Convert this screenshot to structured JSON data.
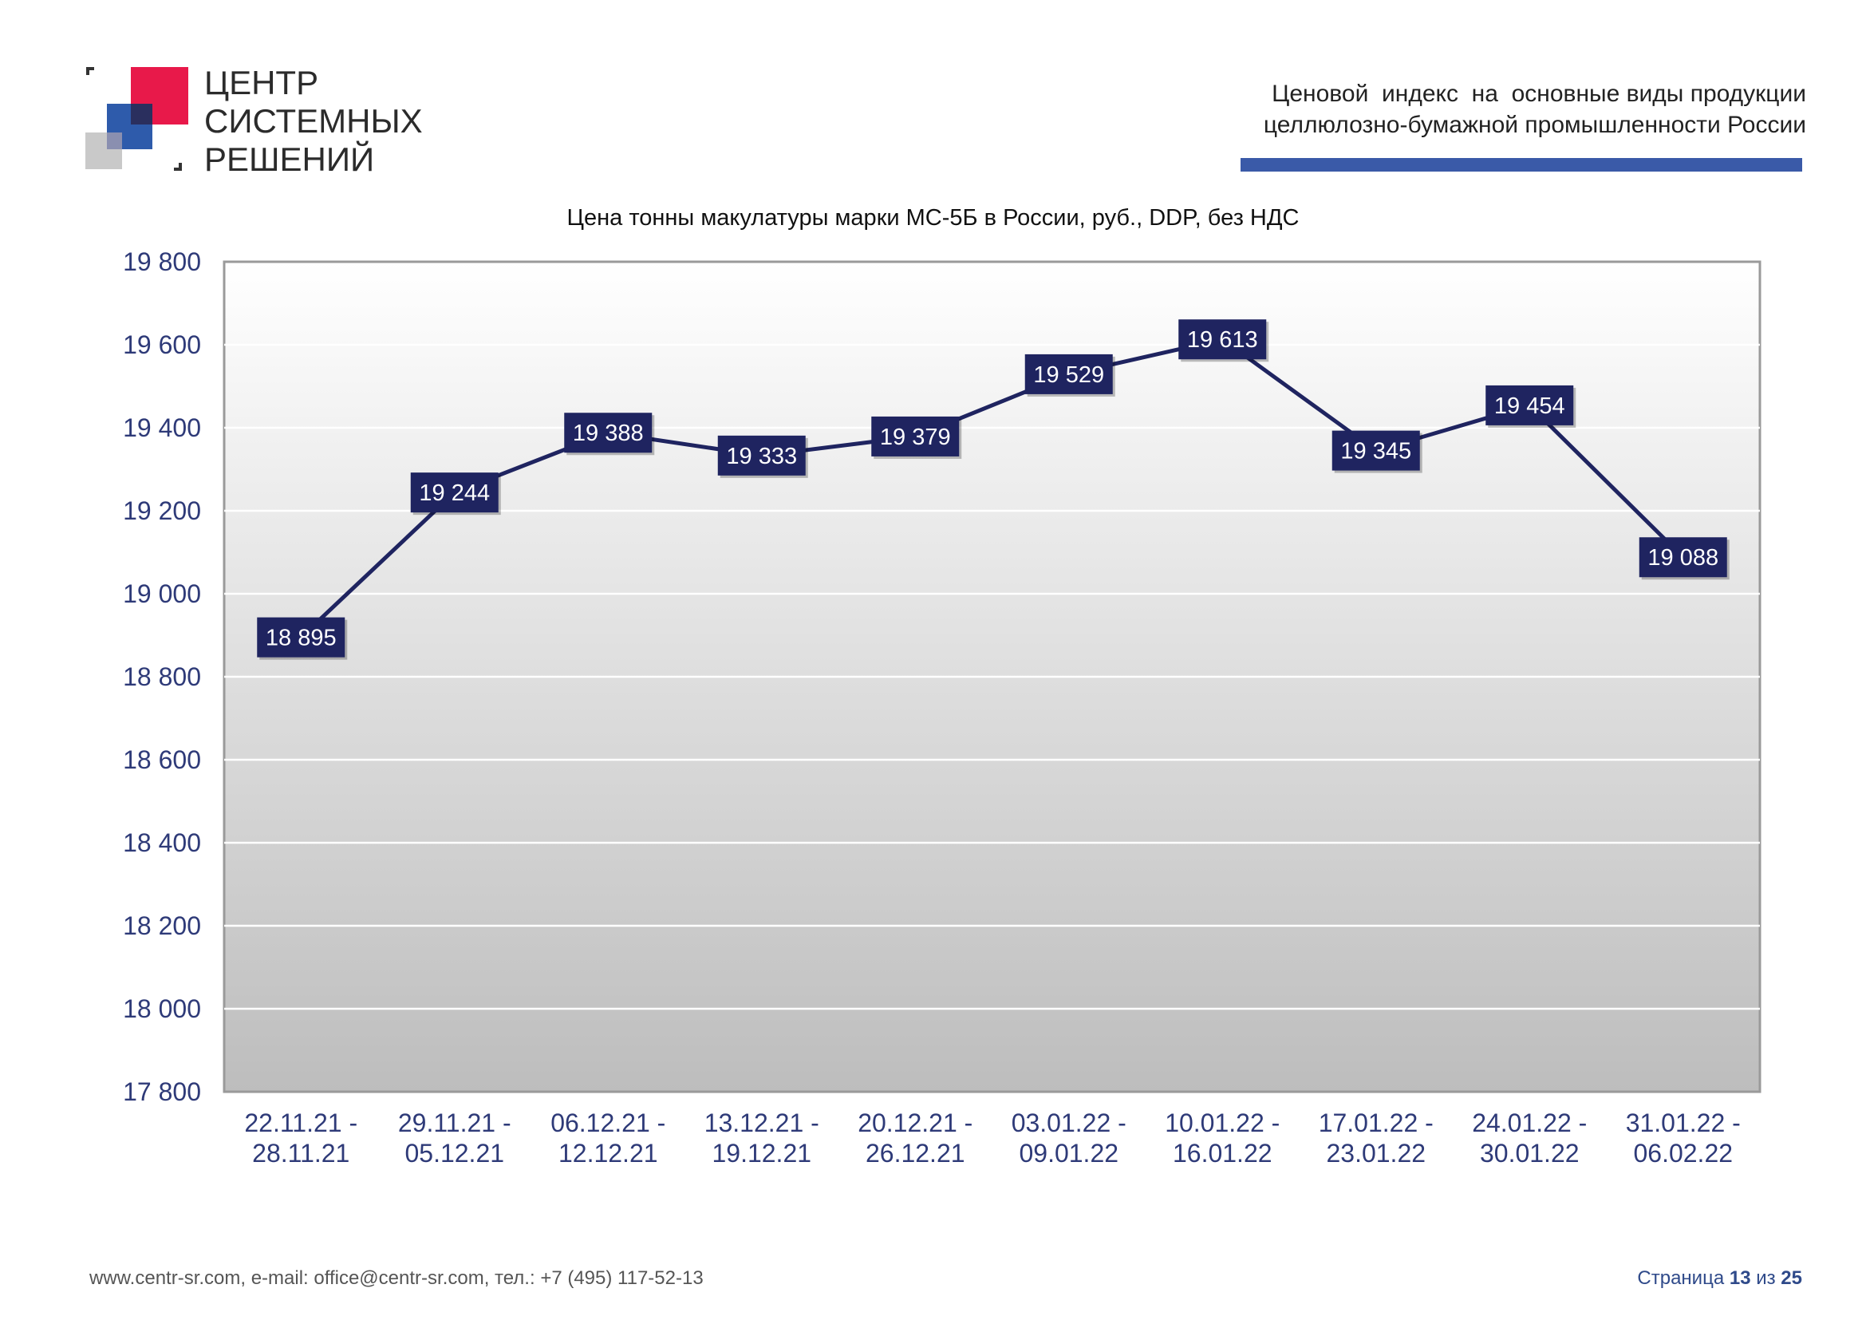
{
  "logo": {
    "lines": [
      "ЦЕНТР",
      "СИСТЕМНЫХ",
      "РЕШЕНИЙ"
    ],
    "colors": {
      "red": "#e8194a",
      "blue": "#2e5bab",
      "gray": "#c9c9c9",
      "dark": "#333333"
    }
  },
  "header": {
    "line1": "Ценовой  индекс  на  основные виды продукции",
    "line2": "целлюлозно-бумажной промышленности России",
    "accent_color": "#3a5aa8"
  },
  "chart_data": {
    "type": "line",
    "title": "Цена тонны макулатуры марки МС-5Б в России, руб., DDP, без НДС",
    "categories": [
      [
        "22.11.21 -",
        "28.11.21"
      ],
      [
        "29.11.21 -",
        "05.12.21"
      ],
      [
        "06.12.21 -",
        "12.12.21"
      ],
      [
        "13.12.21 -",
        "19.12.21"
      ],
      [
        "20.12.21 -",
        "26.12.21"
      ],
      [
        "03.01.22 -",
        "09.01.22"
      ],
      [
        "10.01.22 -",
        "16.01.22"
      ],
      [
        "17.01.22 -",
        "23.01.22"
      ],
      [
        "24.01.22 -",
        "30.01.22"
      ],
      [
        "31.01.22 -",
        "06.02.22"
      ]
    ],
    "values": [
      18895,
      19244,
      19388,
      19333,
      19379,
      19529,
      19613,
      19345,
      19454,
      19088
    ],
    "value_labels": [
      "18 895",
      "19 244",
      "19 388",
      "19 333",
      "19 379",
      "19 529",
      "19 613",
      "19 345",
      "19 454",
      "19 088"
    ],
    "ylim": [
      17800,
      19800
    ],
    "yticks": [
      17800,
      18000,
      18200,
      18400,
      18600,
      18800,
      19000,
      19200,
      19400,
      19600,
      19800
    ],
    "ytick_labels": [
      "17 800",
      "18 000",
      "18 200",
      "18 400",
      "18 600",
      "18 800",
      "19 000",
      "19 200",
      "19 400",
      "19 600",
      "19 800"
    ],
    "grid": true,
    "line_color": "#1f2460",
    "label_bg": "#1f2460",
    "label_color": "#ffffff",
    "axis_text_color": "#2e3a78"
  },
  "footer": {
    "contacts": "www.centr-sr.com, e-mail: office@centr-sr.com, тел.: +7 (495) 117-52-13",
    "page_prefix": "Страница ",
    "page_num": "13",
    "page_mid": " из ",
    "page_total": "25"
  }
}
